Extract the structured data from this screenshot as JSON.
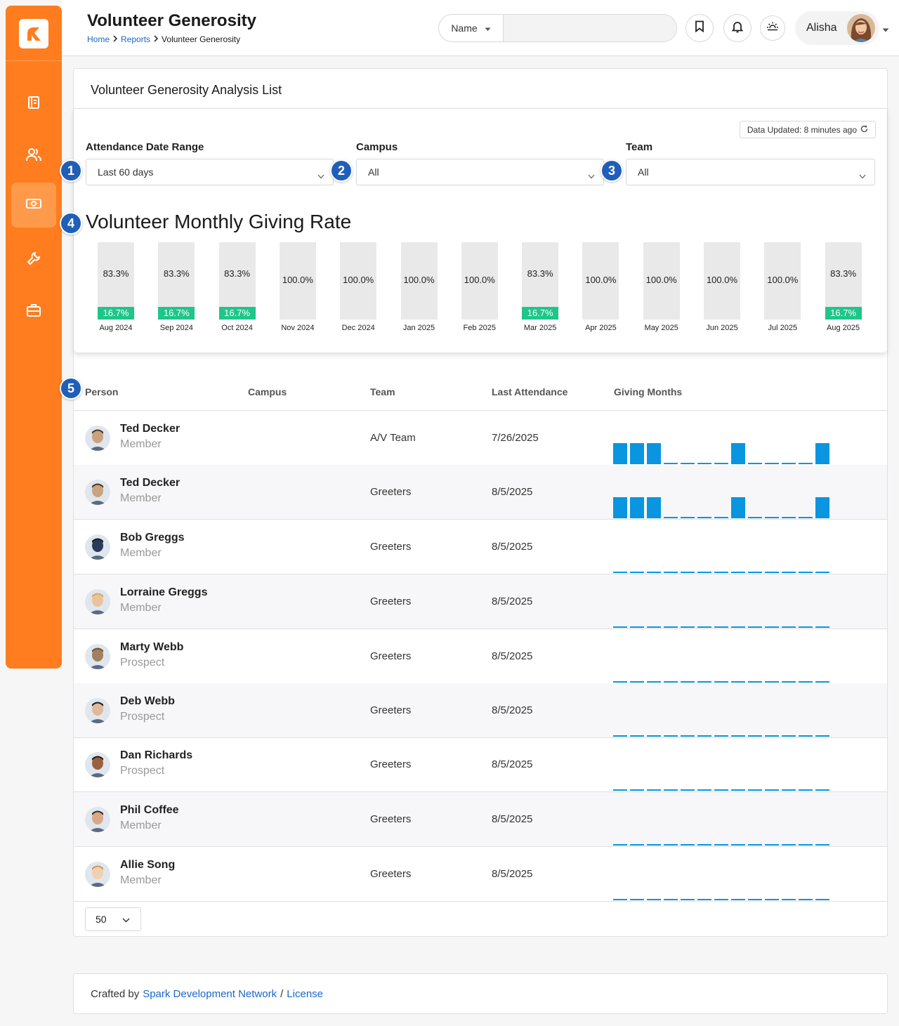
{
  "header": {
    "title": "Volunteer Generosity",
    "breadcrumb": [
      "Home",
      "Reports",
      "Volunteer Generosity"
    ],
    "search_select": "Name",
    "user_name": "Alisha"
  },
  "sidebar": {
    "items": [
      {
        "icon": "book-icon"
      },
      {
        "icon": "people-icon"
      },
      {
        "icon": "money-icon",
        "active": true
      },
      {
        "icon": "wrench-icon"
      },
      {
        "icon": "briefcase-icon"
      }
    ]
  },
  "card": {
    "title": "Volunteer Generosity Analysis List",
    "data_updated": "Data Updated: 8 minutes ago"
  },
  "filters": {
    "date_range": {
      "label": "Attendance Date Range",
      "value": "Last 60 days"
    },
    "campus": {
      "label": "Campus",
      "value": "All"
    },
    "team": {
      "label": "Team",
      "value": "All"
    }
  },
  "badges": [
    "1",
    "2",
    "3",
    "4",
    "5"
  ],
  "chart_data": {
    "type": "bar",
    "title": "Volunteer Monthly Giving Rate",
    "categories": [
      "Aug 2024",
      "Sep 2024",
      "Oct 2024",
      "Nov 2024",
      "Dec 2024",
      "Jan 2025",
      "Feb 2025",
      "Mar 2025",
      "Apr 2025",
      "May 2025",
      "Jun 2025",
      "Jul 2025",
      "Aug 2025"
    ],
    "series": [
      {
        "values": [
          16.7,
          16.7,
          16.7,
          0,
          0,
          0,
          0,
          16.7,
          0,
          0,
          0,
          0,
          16.7
        ]
      },
      {
        "values": [
          83.3,
          83.3,
          83.3,
          100.0,
          100.0,
          100.0,
          100.0,
          83.3,
          100.0,
          100.0,
          100.0,
          100.0,
          83.3
        ]
      }
    ],
    "top_labels": [
      "83.3%",
      "83.3%",
      "83.3%",
      "100.0%",
      "100.0%",
      "100.0%",
      "100.0%",
      "83.3%",
      "100.0%",
      "100.0%",
      "100.0%",
      "100.0%",
      "83.3%"
    ],
    "bottom_labels": [
      "16.7%",
      "16.7%",
      "16.7%",
      "",
      "",
      "",
      "",
      "16.7%",
      "",
      "",
      "",
      "",
      "16.7%"
    ],
    "colors": {
      "giving": "#1ec68a",
      "not_giving": "#e9e9e9"
    }
  },
  "table": {
    "columns": [
      "Person",
      "Campus",
      "Team",
      "Last Attendance",
      "Giving Months"
    ],
    "rows": [
      {
        "name": "Ted Decker",
        "status": "Member",
        "campus": "",
        "team": "A/V Team",
        "last_attendance": "7/26/2025",
        "giving": [
          1,
          1,
          1,
          0,
          0,
          0,
          0,
          1,
          0,
          0,
          0,
          0,
          1
        ]
      },
      {
        "name": "Ted Decker",
        "status": "Member",
        "campus": "",
        "team": "Greeters",
        "last_attendance": "8/5/2025",
        "giving": [
          1,
          1,
          1,
          0,
          0,
          0,
          0,
          1,
          0,
          0,
          0,
          0,
          1
        ]
      },
      {
        "name": "Bob Greggs",
        "status": "Member",
        "campus": "",
        "team": "Greeters",
        "last_attendance": "8/5/2025",
        "giving": [
          0,
          0,
          0,
          0,
          0,
          0,
          0,
          0,
          0,
          0,
          0,
          0,
          0
        ]
      },
      {
        "name": "Lorraine Greggs",
        "status": "Member",
        "campus": "",
        "team": "Greeters",
        "last_attendance": "8/5/2025",
        "giving": [
          0,
          0,
          0,
          0,
          0,
          0,
          0,
          0,
          0,
          0,
          0,
          0,
          0
        ]
      },
      {
        "name": "Marty Webb",
        "status": "Prospect",
        "campus": "",
        "team": "Greeters",
        "last_attendance": "8/5/2025",
        "giving": [
          0,
          0,
          0,
          0,
          0,
          0,
          0,
          0,
          0,
          0,
          0,
          0,
          0
        ]
      },
      {
        "name": "Deb Webb",
        "status": "Prospect",
        "campus": "",
        "team": "Greeters",
        "last_attendance": "8/5/2025",
        "giving": [
          0,
          0,
          0,
          0,
          0,
          0,
          0,
          0,
          0,
          0,
          0,
          0,
          0
        ]
      },
      {
        "name": "Dan Richards",
        "status": "Prospect",
        "campus": "",
        "team": "Greeters",
        "last_attendance": "8/5/2025",
        "giving": [
          0,
          0,
          0,
          0,
          0,
          0,
          0,
          0,
          0,
          0,
          0,
          0,
          0
        ]
      },
      {
        "name": "Phil Coffee",
        "status": "Member",
        "campus": "",
        "team": "Greeters",
        "last_attendance": "8/5/2025",
        "giving": [
          0,
          0,
          0,
          0,
          0,
          0,
          0,
          0,
          0,
          0,
          0,
          0,
          0
        ]
      },
      {
        "name": "Allie Song",
        "status": "Member",
        "campus": "",
        "team": "Greeters",
        "last_attendance": "8/5/2025",
        "giving": [
          0,
          0,
          0,
          0,
          0,
          0,
          0,
          0,
          0,
          0,
          0,
          0,
          0
        ]
      }
    ],
    "page_size": "50",
    "spark_color": "#0a95e0"
  },
  "footer": {
    "prefix": "Crafted by",
    "link1": "Spark Development Network",
    "separator": "/",
    "link2": "License"
  }
}
